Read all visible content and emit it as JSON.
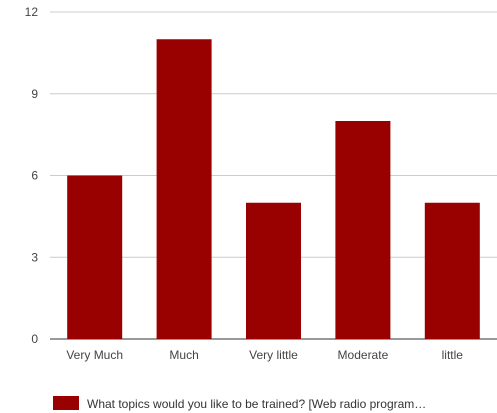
{
  "chart_data": {
    "type": "bar",
    "categories": [
      "Very Much",
      "Much",
      "Very little",
      "Moderate",
      "little"
    ],
    "series": [
      {
        "name": "What topics would you like to be trained? [Web radio program…",
        "values": [
          6,
          11,
          5,
          8,
          5
        ],
        "color": "#990000"
      }
    ],
    "yticks": [
      0,
      3,
      6,
      9,
      12
    ],
    "ylim": [
      0,
      12
    ],
    "grid": true,
    "legend_position": "bottom"
  }
}
